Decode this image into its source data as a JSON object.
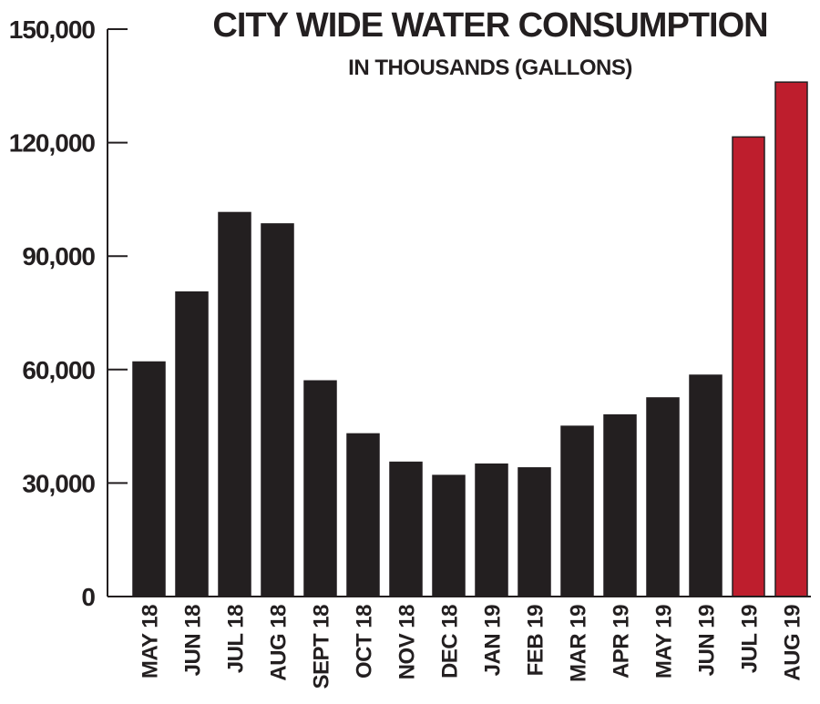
{
  "chart_data": {
    "type": "bar",
    "title": "CITY WIDE WATER CONSUMPTION",
    "subtitle": "IN THOUSANDS (GALLONS)",
    "xlabel": "",
    "ylabel": "",
    "categories": [
      "MAY 18",
      "JUN 18",
      "JUL 18",
      "AUG 18",
      "SEPT 18",
      "OCT 18",
      "NOV 18",
      "DEC 18",
      "JAN 19",
      "FEB 19",
      "MAR 19",
      "APR 19",
      "MAY 19",
      "JUN 19",
      "JUL 19",
      "AUG 19"
    ],
    "values": [
      62000,
      80500,
      101500,
      98500,
      57000,
      43000,
      35500,
      32000,
      35000,
      34000,
      45000,
      48000,
      52500,
      58500,
      121500,
      136000
    ],
    "highlighted": [
      false,
      false,
      false,
      false,
      false,
      false,
      false,
      false,
      false,
      false,
      false,
      false,
      false,
      false,
      true,
      true
    ],
    "ylim": [
      0,
      150000
    ],
    "yticks": [
      0,
      30000,
      60000,
      90000,
      120000,
      150000
    ],
    "ytick_labels": [
      "0",
      "30,000",
      "60,000",
      "90,000",
      "120,000",
      "150,000"
    ],
    "grid": false,
    "legend": "none",
    "colors": {
      "bar": "#231f20",
      "highlight": "#be1e2d",
      "axis": "#231f20",
      "text": "#231f20"
    }
  }
}
